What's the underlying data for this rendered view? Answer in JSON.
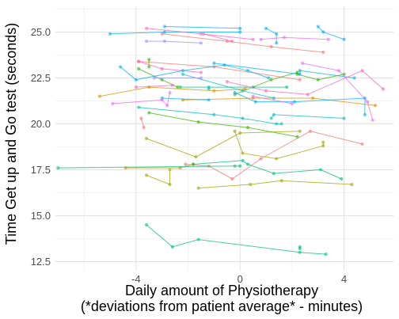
{
  "chart_data": {
    "type": "line",
    "xlabel_line1": "Daily amount of Physiotherapy",
    "xlabel_line2": "(*deviations from patient average* - minutes)",
    "ylabel": "Time Get up and Go test (seconds)",
    "xlim": [
      -7.1,
      5.9
    ],
    "ylim": [
      12.0,
      26.4
    ],
    "x_ticks": [
      -4,
      0,
      4
    ],
    "y_ticks": [
      12.5,
      15.0,
      17.5,
      20.0,
      22.5,
      25.0
    ],
    "grid": true,
    "legend": "none",
    "colors": [
      "#F8766D",
      "#D89000",
      "#A3A500",
      "#39B600",
      "#00BF7D",
      "#00BFC4",
      "#00B0F6",
      "#9590FF",
      "#E76BF3",
      "#FF62BC"
    ],
    "series": [
      {
        "color_index": 0,
        "points": [
          [
            -3.8,
            20.3
          ],
          [
            -3.7,
            19.8
          ]
        ]
      },
      {
        "color_index": 0,
        "points": [
          [
            -2.1,
            17.8
          ],
          [
            -1.2,
            17.7
          ],
          [
            -0.3,
            17.0
          ],
          [
            0.8,
            18.1
          ],
          [
            2.7,
            19.6
          ],
          [
            4.7,
            18.9
          ]
        ]
      },
      {
        "color_index": 0,
        "points": [
          [
            -3.9,
            23.4
          ],
          [
            -1.0,
            23.1
          ],
          [
            2.3,
            22.4
          ]
        ]
      },
      {
        "color_index": 0,
        "points": [
          [
            -3.0,
            24.9
          ],
          [
            -0.5,
            24.5
          ],
          [
            1.2,
            24.2
          ],
          [
            3.2,
            23.9
          ]
        ]
      },
      {
        "color_index": 1,
        "points": [
          [
            -5.4,
            21.5
          ],
          [
            -3.5,
            22.0
          ],
          [
            -1.0,
            21.8
          ],
          [
            0.2,
            21.9
          ]
        ]
      },
      {
        "color_index": 1,
        "points": [
          [
            -2.2,
            21.3
          ],
          [
            0.5,
            21.4
          ],
          [
            2.8,
            21.4
          ],
          [
            5.2,
            21.0
          ]
        ]
      },
      {
        "color_index": 1,
        "points": [
          [
            -4.4,
            17.6
          ],
          [
            -2.3,
            17.6
          ],
          [
            -1.8,
            17.8
          ]
        ]
      },
      {
        "color_index": 2,
        "points": [
          [
            -3.6,
            19.2
          ],
          [
            -1.7,
            18.2
          ],
          [
            0.0,
            19.5
          ],
          [
            2.3,
            19.6
          ]
        ]
      },
      {
        "color_index": 2,
        "points": [
          [
            -3.6,
            17.2
          ],
          [
            -2.7,
            16.7
          ],
          [
            -2.7,
            17.5
          ]
        ]
      },
      {
        "color_index": 2,
        "points": [
          [
            -1.6,
            16.5
          ],
          [
            0.4,
            16.7
          ],
          [
            1.6,
            16.9
          ],
          [
            4.3,
            16.7
          ]
        ]
      },
      {
        "color_index": 2,
        "points": [
          [
            -0.2,
            19.6
          ],
          [
            0.1,
            18.4
          ],
          [
            1.4,
            18.1
          ],
          [
            3.2,
            18.8
          ],
          [
            3.2,
            19.0
          ]
        ]
      },
      {
        "color_index": 3,
        "points": [
          [
            -3.9,
            23.0
          ],
          [
            -3.0,
            22.4
          ],
          [
            -2.4,
            22.0
          ]
        ]
      },
      {
        "color_index": 3,
        "points": [
          [
            -3.5,
            20.6
          ],
          [
            -1.6,
            20.1
          ],
          [
            0.3,
            19.8
          ],
          [
            2.2,
            19.3
          ]
        ]
      },
      {
        "color_index": 3,
        "points": [
          [
            -3.5,
            23.5
          ],
          [
            -3.5,
            23.1
          ]
        ]
      },
      {
        "color_index": 3,
        "points": [
          [
            -0.2,
            21.6
          ],
          [
            1.2,
            22.4
          ],
          [
            2.2,
            22.8
          ],
          [
            2.2,
            22.7
          ],
          [
            3.0,
            22.4
          ],
          [
            4.0,
            22.7
          ]
        ]
      },
      {
        "color_index": 4,
        "points": [
          [
            -7.0,
            17.6
          ],
          [
            -0.2,
            17.7
          ],
          [
            0.0,
            17.7
          ]
        ]
      },
      {
        "color_index": 4,
        "points": [
          [
            -3.6,
            14.5
          ],
          [
            -2.6,
            13.3
          ],
          [
            -1.6,
            13.7
          ],
          [
            2.3,
            13.0
          ],
          [
            3.3,
            12.9
          ]
        ]
      },
      {
        "color_index": 4,
        "points": [
          [
            -1.8,
            17.8
          ],
          [
            0.1,
            18.0
          ],
          [
            0.3,
            17.8
          ],
          [
            1.3,
            17.3
          ],
          [
            3.1,
            17.5
          ],
          [
            3.9,
            17.0
          ]
        ]
      },
      {
        "color_index": 4,
        "points": [
          [
            2.3,
            13.2
          ],
          [
            2.3,
            13.3
          ]
        ]
      },
      {
        "color_index": 4,
        "points": [
          [
            -2.3,
            22.0
          ],
          [
            0.5,
            22.0
          ],
          [
            1.8,
            22.0
          ]
        ]
      },
      {
        "color_index": 5,
        "points": [
          [
            -3.9,
            20.9
          ],
          [
            -1.0,
            20.5
          ],
          [
            0.1,
            20.3
          ],
          [
            1.4,
            20.0
          ],
          [
            1.6,
            20.0
          ]
        ]
      },
      {
        "color_index": 5,
        "points": [
          [
            -2.2,
            22.7
          ],
          [
            0.1,
            21.8
          ],
          [
            1.3,
            21.4
          ]
        ]
      },
      {
        "color_index": 5,
        "points": [
          [
            1.2,
            20.3
          ],
          [
            1.3,
            20.5
          ],
          [
            4.0,
            20.3
          ]
        ]
      },
      {
        "color_index": 5,
        "points": [
          [
            -1.2,
            21.9
          ],
          [
            -1.2,
            22.0
          ]
        ]
      },
      {
        "color_index": 6,
        "points": [
          [
            -5.0,
            24.9
          ],
          [
            -2.9,
            25.0
          ],
          [
            -0.0,
            25.0
          ]
        ]
      },
      {
        "color_index": 6,
        "points": [
          [
            -2.9,
            25.3
          ],
          [
            0.0,
            25.2
          ]
        ]
      },
      {
        "color_index": 6,
        "points": [
          [
            1.0,
            25.2
          ],
          [
            1.4,
            24.9
          ],
          [
            1.4,
            24.4
          ]
        ]
      },
      {
        "color_index": 6,
        "points": [
          [
            3.0,
            25.3
          ],
          [
            3.2,
            25.0
          ],
          [
            4.0,
            24.6
          ]
        ]
      },
      {
        "color_index": 6,
        "points": [
          [
            -4.6,
            23.1
          ],
          [
            -4.0,
            22.4
          ],
          [
            -2.2,
            22.9
          ],
          [
            -0.6,
            23.2
          ],
          [
            0.3,
            22.9
          ],
          [
            1.1,
            22.5
          ]
        ]
      },
      {
        "color_index": 6,
        "points": [
          [
            -1.0,
            23.3
          ],
          [
            2.3,
            22.7
          ],
          [
            2.3,
            22.9
          ],
          [
            4.4,
            22.5
          ]
        ]
      },
      {
        "color_index": 6,
        "points": [
          [
            -0.2,
            21.7
          ],
          [
            0.6,
            21.2
          ],
          [
            2.1,
            21.2
          ],
          [
            4.8,
            21.4
          ],
          [
            4.8,
            20.5
          ]
        ]
      },
      {
        "color_index": 6,
        "points": [
          [
            -3.0,
            21.4
          ],
          [
            -1.2,
            21.3
          ]
        ]
      },
      {
        "color_index": 7,
        "points": [
          [
            -3.6,
            24.5
          ],
          [
            -2.9,
            24.5
          ],
          [
            -1.5,
            24.4
          ]
        ]
      },
      {
        "color_index": 7,
        "points": [
          [
            -3.3,
            22.5
          ],
          [
            -1.5,
            22.5
          ]
        ]
      },
      {
        "color_index": 8,
        "points": [
          [
            -4.9,
            21.1
          ],
          [
            -3.0,
            21.3
          ],
          [
            -2.8,
            21.0
          ],
          [
            -2.7,
            21.7
          ]
        ]
      },
      {
        "color_index": 8,
        "points": [
          [
            0.8,
            24.6
          ],
          [
            1.7,
            24.7
          ],
          [
            3.4,
            24.6
          ]
        ]
      },
      {
        "color_index": 8,
        "points": [
          [
            2.4,
            23.3
          ],
          [
            3.8,
            22.9
          ],
          [
            4.9,
            21.2
          ],
          [
            5.1,
            20.2
          ]
        ]
      },
      {
        "color_index": 8,
        "points": [
          [
            0.5,
            21.5
          ],
          [
            2.0,
            21.1
          ]
        ]
      },
      {
        "color_index": 9,
        "points": [
          [
            -3.6,
            25.2
          ],
          [
            -1.5,
            24.9
          ],
          [
            0.5,
            24.6
          ]
        ]
      },
      {
        "color_index": 9,
        "points": [
          [
            -3.9,
            23.4
          ],
          [
            -3.0,
            23.0
          ],
          [
            -1.5,
            22.8
          ]
        ]
      },
      {
        "color_index": 9,
        "points": [
          [
            -4.0,
            22.0
          ],
          [
            -2.6,
            22.1
          ]
        ]
      },
      {
        "color_index": 9,
        "points": [
          [
            -0.5,
            22.3
          ],
          [
            1.0,
            21.8
          ],
          [
            2.6,
            21.6
          ],
          [
            4.7,
            22.9
          ],
          [
            5.5,
            21.9
          ]
        ]
      },
      {
        "color_index": 9,
        "points": [
          [
            -1.4,
            24.9
          ],
          [
            -0.3,
            24.5
          ]
        ]
      }
    ]
  }
}
